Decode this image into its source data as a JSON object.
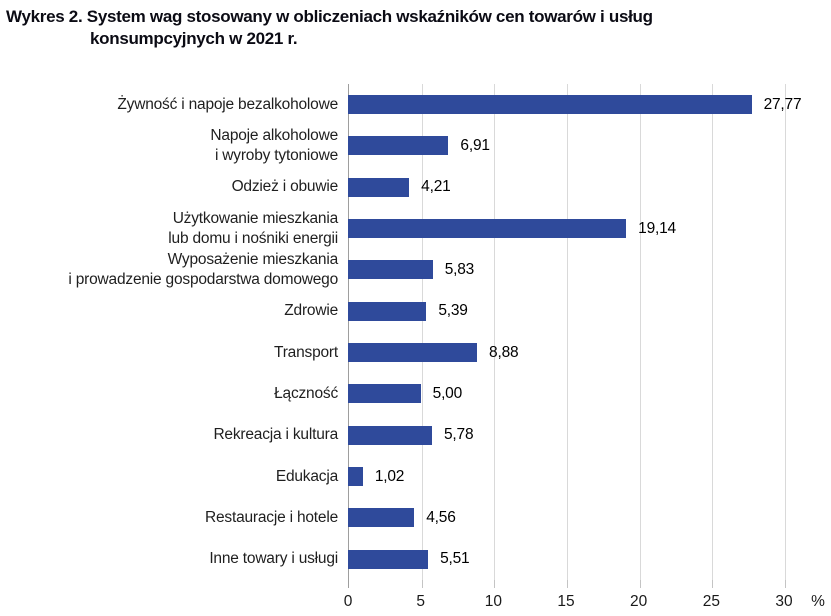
{
  "title": {
    "line1": "Wykres 2. System wag stosowany w obliczeniach wskaźników cen towarów i usług",
    "line2": "konsumpcyjnych w 2021 r."
  },
  "chart_data": {
    "type": "bar",
    "orientation": "horizontal",
    "title": "Wykres 2. System wag stosowany w obliczeniach wskaźników cen towarów i usług konsumpcyjnych w 2021 r.",
    "categories": [
      "Żywność i napoje bezalkoholowe",
      "Napoje alkoholowe\ni wyroby tytoniowe",
      "Odzież i obuwie",
      "Użytkowanie mieszkania\nlub domu i nośniki energii",
      "Wyposażenie mieszkania\ni prowadzenie gospodarstwa domowego",
      "Zdrowie",
      "Transport",
      "Łączność",
      "Rekreacja i kultura",
      "Edukacja",
      "Restauracje i hotele",
      "Inne towary i usługi"
    ],
    "values": [
      27.77,
      6.91,
      4.21,
      19.14,
      5.83,
      5.39,
      8.88,
      5.0,
      5.78,
      1.02,
      4.56,
      5.51
    ],
    "value_labels": [
      "27,77",
      "6,91",
      "4,21",
      "19,14",
      "5,83",
      "5,39",
      "8,88",
      "5,00",
      "5,78",
      "1,02",
      "4,56",
      "5,51"
    ],
    "xlabel": "%",
    "xlim": [
      0,
      30
    ],
    "xticks": [
      0,
      5,
      10,
      15,
      20,
      25,
      30
    ],
    "xtick_labels": [
      "0",
      "5",
      "10",
      "15",
      "20",
      "25",
      "30"
    ],
    "grid": "vertical",
    "legend": "none",
    "bar_color": "#2f4a9b",
    "gridline_color": "#d9d9d9",
    "tick_color": "#c4c4c4",
    "axis_line_color": "#9e9e9e"
  }
}
